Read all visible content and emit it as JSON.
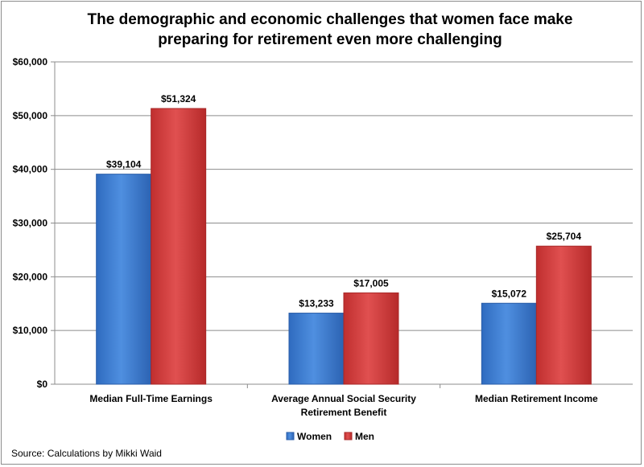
{
  "chart_data": {
    "type": "bar",
    "title_lines": [
      "The demographic and economic challenges that women face make",
      "preparing for retirement even more challenging"
    ],
    "categories": [
      [
        "Median Full-Time Earnings"
      ],
      [
        "Average Annual Social Security",
        "Retirement Benefit"
      ],
      [
        "Median Retirement Income"
      ]
    ],
    "series": [
      {
        "name": "Women",
        "color": "#3f7fd4",
        "values": [
          39104,
          13233,
          15072
        ],
        "labels": [
          "$39,104",
          "$13,233",
          "$15,072"
        ]
      },
      {
        "name": "Men",
        "color": "#d43c3c",
        "values": [
          51324,
          17005,
          25704
        ],
        "labels": [
          "$51,324",
          "$17,005",
          "$25,704"
        ]
      }
    ],
    "ylim": [
      0,
      60000
    ],
    "yticks": [
      0,
      10000,
      20000,
      30000,
      40000,
      50000,
      60000
    ],
    "ytick_labels": [
      "$0",
      "$10,000",
      "$20,000",
      "$30,000",
      "$40,000",
      "$50,000",
      "$60,000"
    ],
    "grid": true,
    "legend_position": "bottom"
  },
  "source": "Source: Calculations by Mikki Waid"
}
